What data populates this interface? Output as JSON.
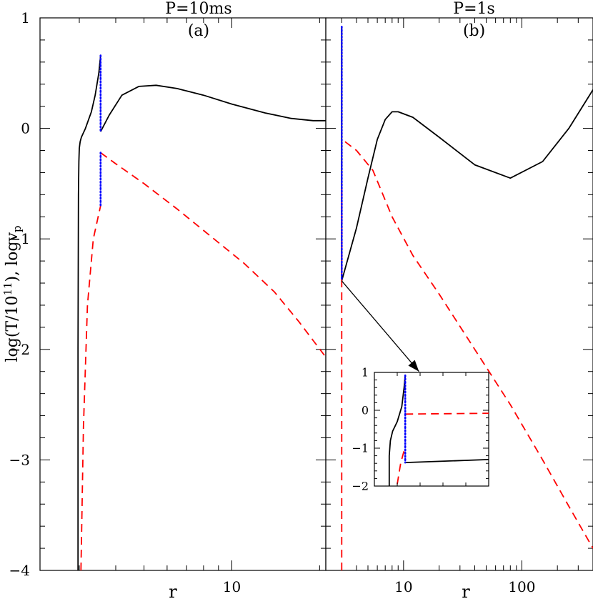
{
  "figure": {
    "ylabel_main": "log(T/10",
    "ylabel_sup": "11",
    "ylabel_tail": "), logv",
    "ylabel_sub": "p"
  },
  "chart_data": [
    {
      "type": "line",
      "panel": "a",
      "title": "P=10ms",
      "panel_label": "(a)",
      "xlabel": "r",
      "xscale": "log",
      "xlim": [
        2.2,
        21
      ],
      "ylim": [
        -4,
        1
      ],
      "x_tick_labels": [
        {
          "value": 10,
          "label": "10"
        }
      ],
      "y_tick_labels": [
        {
          "value": 1,
          "label": "1"
        },
        {
          "value": 0,
          "label": "0"
        },
        {
          "value": -1,
          "label": "−1"
        },
        {
          "value": -2,
          "label": "−2"
        },
        {
          "value": -3,
          "label": "−3"
        },
        {
          "value": -4,
          "label": "−4"
        }
      ],
      "series": [
        {
          "color": "#000000",
          "dash": "solid",
          "x": [
            2.97,
            2.97,
            2.98,
            2.99,
            3.0,
            3.02,
            3.05,
            3.15,
            3.3,
            3.4,
            3.5,
            3.55
          ],
          "y": [
            -4.0,
            -2.0,
            -0.6,
            -0.3,
            -0.18,
            -0.12,
            -0.08,
            0.0,
            0.15,
            0.3,
            0.5,
            0.66
          ]
        },
        {
          "color": "#000000",
          "dash": "solid",
          "x": [
            3.55,
            3.8,
            4.2,
            4.8,
            5.5,
            6.5,
            8.0,
            10.0,
            13.0,
            16.0,
            19.0,
            21.0
          ],
          "y": [
            -0.03,
            0.12,
            0.3,
            0.38,
            0.39,
            0.36,
            0.3,
            0.22,
            0.14,
            0.09,
            0.07,
            0.07
          ]
        },
        {
          "color": "#ff0000",
          "dash": "dashed",
          "x": [
            3.04,
            3.1,
            3.2,
            3.35,
            3.55
          ],
          "y": [
            -4.0,
            -2.7,
            -1.6,
            -1.0,
            -0.7
          ]
        },
        {
          "color": "#ff0000",
          "dash": "dashed",
          "x": [
            3.55,
            4.0,
            5.0,
            6.5,
            8.5,
            11.0,
            14.0,
            17.0,
            21.0
          ],
          "y": [
            -0.22,
            -0.32,
            -0.5,
            -0.73,
            -0.98,
            -1.22,
            -1.48,
            -1.75,
            -2.07
          ]
        },
        {
          "color": "#0000ff",
          "dash": "dotted",
          "x": [
            3.55,
            3.55
          ],
          "y": [
            0.66,
            -0.03
          ]
        },
        {
          "color": "#0000ff",
          "dash": "dotted",
          "x": [
            3.55,
            3.55
          ],
          "y": [
            -0.22,
            -0.7
          ]
        }
      ]
    },
    {
      "type": "line",
      "panel": "b",
      "title": "P=1s",
      "panel_label": "(b)",
      "xlabel": "r",
      "xscale": "log",
      "xlim": [
        2.2,
        400
      ],
      "ylim": [
        -4,
        1
      ],
      "x_tick_labels": [
        {
          "value": 10,
          "label": "10"
        },
        {
          "value": 100,
          "label": "100"
        }
      ],
      "series": [
        {
          "color": "#000000",
          "dash": "solid",
          "x": [
            3.0,
            3.0
          ],
          "y": [
            -1.38,
            0.92
          ]
        },
        {
          "color": "#000000",
          "dash": "solid",
          "x": [
            3.0,
            4.0,
            5.0,
            6.0,
            7.0,
            8.0,
            9.0,
            12.0,
            20.0,
            40.0,
            80.0,
            150.0,
            250.0,
            400.0
          ],
          "y": [
            -1.38,
            -0.9,
            -0.45,
            -0.1,
            0.08,
            0.15,
            0.15,
            0.1,
            -0.08,
            -0.33,
            -0.45,
            -0.3,
            0.0,
            0.35
          ]
        },
        {
          "color": "#ff0000",
          "dash": "dashed",
          "x": [
            3.0,
            3.0
          ],
          "y": [
            -4.0,
            -0.5
          ]
        },
        {
          "color": "#ff0000",
          "dash": "dashed",
          "x": [
            3.2,
            4.0,
            5.5,
            8.0,
            12.0,
            20.0,
            40.0,
            80.0,
            150.0,
            250.0,
            400.0
          ],
          "y": [
            -0.12,
            -0.2,
            -0.38,
            -0.8,
            -1.15,
            -1.5,
            -2.0,
            -2.5,
            -3.0,
            -3.42,
            -3.8
          ]
        },
        {
          "color": "#0000ff",
          "dash": "dotted",
          "x": [
            3.0,
            3.0
          ],
          "y": [
            0.92,
            -1.38
          ]
        }
      ],
      "annotation_arrow": {
        "from": [
          3.0,
          -1.38
        ],
        "to": [
          13.5,
          -2.2
        ]
      }
    },
    {
      "type": "line",
      "panel": "b-inset",
      "xscale": "linear",
      "xlim": [
        0,
        1
      ],
      "ylim": [
        -2,
        1
      ],
      "y_tick_labels": [
        {
          "value": 1,
          "label": "1"
        },
        {
          "value": 0,
          "label": "0"
        },
        {
          "value": -1,
          "label": "−1"
        },
        {
          "value": -2,
          "label": "−2"
        }
      ],
      "series": [
        {
          "color": "#000000",
          "dash": "solid",
          "x": [
            0.13,
            0.13,
            0.14,
            0.16,
            0.2,
            0.24,
            0.26,
            0.27
          ],
          "y": [
            -2.0,
            -1.2,
            -0.8,
            -0.55,
            -0.3,
            0.1,
            0.6,
            0.92
          ]
        },
        {
          "color": "#000000",
          "dash": "solid",
          "x": [
            0.27,
            1.0
          ],
          "y": [
            -1.38,
            -1.3
          ]
        },
        {
          "color": "#ff0000",
          "dash": "dashed",
          "x": [
            0.2,
            0.23,
            0.27
          ],
          "y": [
            -1.95,
            -1.4,
            -0.95
          ]
        },
        {
          "color": "#ff0000",
          "dash": "dashed",
          "x": [
            0.27,
            1.0
          ],
          "y": [
            -0.1,
            -0.08
          ]
        },
        {
          "color": "#0000ff",
          "dash": "dotted",
          "x": [
            0.27,
            0.27
          ],
          "y": [
            0.92,
            -1.38
          ]
        }
      ]
    }
  ]
}
